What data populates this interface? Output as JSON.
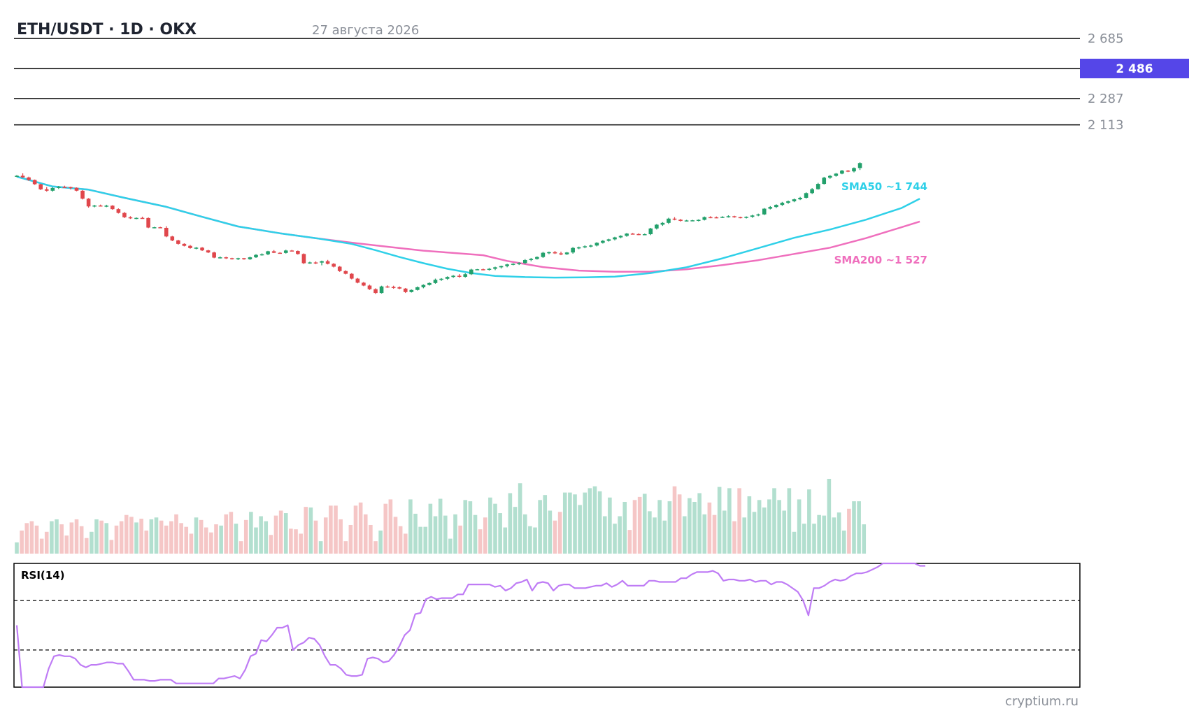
{
  "header": {
    "title": "ETH/USDT · 1D · OKX",
    "date": "27 августа 2026"
  },
  "watermark": "cryptium.ru",
  "colors": {
    "up": "#22a06b",
    "down": "#e0474c",
    "sma50": "#2fd0e8",
    "sma200": "#ef6fbd",
    "rsi": "#bf7cf5",
    "accent": "#5546e8"
  },
  "chart_data": {
    "type": "candlestick",
    "symbol": "ETH/USDT",
    "timeframe": "1D",
    "exchange": "OKX",
    "levels": [
      {
        "price": 2685,
        "label": "2 685"
      },
      {
        "price": 2287,
        "label": "2 287"
      },
      {
        "price": 2113,
        "label": "2 113"
      }
    ],
    "last_price": {
      "price": 2486,
      "label": "2 486"
    },
    "ylim": [
      700,
      2770
    ],
    "candles": [
      [
        1770,
        1780,
        1768,
        1776
      ],
      [
        1776,
        1792,
        1761,
        1765
      ],
      [
        1765,
        1770,
        1742,
        1748
      ],
      [
        1748,
        1751,
        1716,
        1720
      ],
      [
        1720,
        1723,
        1681,
        1686
      ],
      [
        1686,
        1701,
        1671,
        1677
      ],
      [
        1677,
        1700,
        1671,
        1695
      ],
      [
        1695,
        1708,
        1688,
        1702
      ],
      [
        1702,
        1710,
        1697,
        1701
      ],
      [
        1701,
        1704,
        1685,
        1696
      ],
      [
        1696,
        1699,
        1673,
        1677
      ],
      [
        1677,
        1681,
        1619,
        1624
      ],
      [
        1624,
        1628,
        1565,
        1573
      ],
      [
        1573,
        1583,
        1567,
        1579
      ],
      [
        1579,
        1585,
        1575,
        1576
      ],
      [
        1576,
        1584,
        1568,
        1578
      ],
      [
        1578,
        1581,
        1551,
        1555
      ],
      [
        1555,
        1560,
        1526,
        1530
      ],
      [
        1530,
        1536,
        1496,
        1501
      ],
      [
        1501,
        1508,
        1490,
        1495
      ],
      [
        1495,
        1500,
        1488,
        1497
      ],
      [
        1497,
        1505,
        1491,
        1496
      ],
      [
        1496,
        1500,
        1429,
        1433
      ],
      [
        1433,
        1438,
        1428,
        1435
      ],
      [
        1435,
        1438,
        1429,
        1431
      ],
      [
        1431,
        1442,
        1369,
        1374
      ],
      [
        1374,
        1378,
        1343,
        1348
      ],
      [
        1348,
        1352,
        1320,
        1325
      ],
      [
        1325,
        1329,
        1308,
        1312
      ],
      [
        1312,
        1318,
        1293,
        1297
      ],
      [
        1297,
        1304,
        1289,
        1300
      ],
      [
        1300,
        1304,
        1278,
        1282
      ],
      [
        1282,
        1286,
        1264,
        1268
      ],
      [
        1268,
        1273,
        1230,
        1234
      ],
      [
        1234,
        1242,
        1228,
        1236
      ],
      [
        1236,
        1240,
        1225,
        1230
      ],
      [
        1230,
        1233,
        1221,
        1226
      ],
      [
        1226,
        1233,
        1218,
        1230
      ],
      [
        1230,
        1232,
        1220,
        1223
      ],
      [
        1223,
        1240,
        1219,
        1236
      ],
      [
        1236,
        1257,
        1232,
        1252
      ],
      [
        1252,
        1262,
        1247,
        1256
      ],
      [
        1256,
        1279,
        1250,
        1276
      ],
      [
        1276,
        1284,
        1264,
        1266
      ],
      [
        1266,
        1270,
        1261,
        1265
      ],
      [
        1265,
        1286,
        1261,
        1281
      ],
      [
        1281,
        1285,
        1276,
        1278
      ],
      [
        1278,
        1281,
        1254,
        1258
      ],
      [
        1258,
        1262,
        1191,
        1197
      ],
      [
        1197,
        1207,
        1193,
        1202
      ],
      [
        1202,
        1209,
        1191,
        1201
      ],
      [
        1201,
        1214,
        1183,
        1210
      ],
      [
        1210,
        1219,
        1189,
        1193
      ],
      [
        1193,
        1198,
        1169,
        1174
      ],
      [
        1174,
        1178,
        1140,
        1145
      ],
      [
        1145,
        1150,
        1123,
        1127
      ],
      [
        1127,
        1131,
        1090,
        1095
      ],
      [
        1095,
        1099,
        1064,
        1068
      ],
      [
        1068,
        1073,
        1045,
        1049
      ],
      [
        1049,
        1055,
        1020,
        1025
      ],
      [
        1025,
        1031,
        993,
        1000
      ],
      [
        1000,
        1048,
        996,
        1043
      ],
      [
        1043,
        1050,
        1034,
        1040
      ],
      [
        1040,
        1048,
        1028,
        1038
      ],
      [
        1038,
        1043,
        1025,
        1029
      ],
      [
        1029,
        1033,
        1000,
        1006
      ],
      [
        1006,
        1023,
        1003,
        1020
      ],
      [
        1020,
        1043,
        1016,
        1038
      ],
      [
        1038,
        1057,
        1031,
        1053
      ],
      [
        1053,
        1070,
        1049,
        1066
      ],
      [
        1066,
        1095,
        1061,
        1087
      ],
      [
        1087,
        1098,
        1080,
        1094
      ],
      [
        1094,
        1110,
        1087,
        1106
      ],
      [
        1106,
        1118,
        1100,
        1114
      ],
      [
        1114,
        1125,
        1101,
        1107
      ],
      [
        1107,
        1130,
        1102,
        1124
      ],
      [
        1124,
        1160,
        1119,
        1155
      ],
      [
        1155,
        1159,
        1152,
        1157
      ],
      [
        1157,
        1161,
        1150,
        1155
      ],
      [
        1155,
        1165,
        1148,
        1160
      ],
      [
        1160,
        1174,
        1151,
        1170
      ],
      [
        1170,
        1181,
        1162,
        1178
      ],
      [
        1178,
        1193,
        1170,
        1189
      ],
      [
        1189,
        1197,
        1183,
        1193
      ],
      [
        1193,
        1203,
        1185,
        1198
      ],
      [
        1198,
        1224,
        1192,
        1218
      ],
      [
        1218,
        1232,
        1210,
        1225
      ],
      [
        1225,
        1242,
        1221,
        1238
      ],
      [
        1238,
        1272,
        1232,
        1266
      ],
      [
        1266,
        1274,
        1257,
        1270
      ],
      [
        1270,
        1278,
        1258,
        1262
      ],
      [
        1262,
        1273,
        1250,
        1256
      ],
      [
        1256,
        1271,
        1252,
        1268
      ],
      [
        1268,
        1304,
        1260,
        1298
      ],
      [
        1298,
        1307,
        1290,
        1302
      ],
      [
        1302,
        1315,
        1296,
        1309
      ],
      [
        1309,
        1320,
        1302,
        1314
      ],
      [
        1314,
        1336,
        1308,
        1332
      ],
      [
        1332,
        1350,
        1327,
        1345
      ],
      [
        1345,
        1359,
        1340,
        1355
      ],
      [
        1355,
        1372,
        1348,
        1368
      ],
      [
        1368,
        1382,
        1362,
        1378
      ],
      [
        1378,
        1397,
        1372,
        1393
      ],
      [
        1393,
        1397,
        1387,
        1390
      ],
      [
        1390,
        1395,
        1383,
        1387
      ],
      [
        1387,
        1393,
        1383,
        1389
      ],
      [
        1389,
        1431,
        1383,
        1427
      ],
      [
        1427,
        1456,
        1420,
        1452
      ],
      [
        1452,
        1469,
        1444,
        1464
      ],
      [
        1464,
        1498,
        1457,
        1492
      ],
      [
        1492,
        1502,
        1481,
        1485
      ],
      [
        1485,
        1490,
        1473,
        1477
      ],
      [
        1477,
        1484,
        1474,
        1480
      ],
      [
        1480,
        1484,
        1476,
        1481
      ],
      [
        1481,
        1487,
        1474,
        1484
      ],
      [
        1484,
        1506,
        1480,
        1502
      ],
      [
        1502,
        1508,
        1495,
        1501
      ],
      [
        1501,
        1506,
        1495,
        1500
      ],
      [
        1500,
        1508,
        1496,
        1504
      ],
      [
        1504,
        1514,
        1499,
        1508
      ],
      [
        1508,
        1511,
        1498,
        1502
      ],
      [
        1502,
        1505,
        1494,
        1497
      ],
      [
        1497,
        1507,
        1493,
        1504
      ],
      [
        1504,
        1518,
        1498,
        1513
      ],
      [
        1513,
        1525,
        1508,
        1520
      ],
      [
        1520,
        1562,
        1516,
        1558
      ],
      [
        1558,
        1575,
        1553,
        1569
      ],
      [
        1569,
        1587,
        1562,
        1583
      ],
      [
        1583,
        1603,
        1576,
        1597
      ],
      [
        1597,
        1612,
        1590,
        1607
      ],
      [
        1607,
        1625,
        1601,
        1620
      ],
      [
        1620,
        1636,
        1615,
        1630
      ],
      [
        1630,
        1666,
        1625,
        1661
      ],
      [
        1661,
        1694,
        1655,
        1687
      ],
      [
        1687,
        1729,
        1684,
        1722
      ],
      [
        1722,
        1769,
        1718,
        1763
      ],
      [
        1763,
        1781,
        1756,
        1775
      ],
      [
        1775,
        1794,
        1770,
        1790
      ],
      [
        1790,
        1814,
        1786,
        1810
      ],
      [
        1810,
        1814,
        1800,
        1805
      ],
      [
        1805,
        1831,
        1798,
        1827
      ],
      [
        1827,
        1865,
        1814,
        1860
      ]
    ],
    "volume": [
      0.18,
      0.37,
      0.49,
      0.52,
      0.45,
      0.24,
      0.35,
      0.52,
      0.55,
      0.47,
      0.29,
      0.5,
      0.55,
      0.44,
      0.25,
      0.35,
      0.55,
      0.53,
      0.49,
      0.22,
      0.45,
      0.52,
      0.62,
      0.59,
      0.5,
      0.56,
      0.37,
      0.55,
      0.58,
      0.53,
      0.45,
      0.52,
      0.63,
      0.49,
      0.43,
      0.32,
      0.58,
      0.54,
      0.42,
      0.34,
      0.47,
      0.45,
      0.63,
      0.67,
      0.48,
      0.2,
      0.54,
      0.67,
      0.42,
      0.6,
      0.52,
      0.3,
      0.61,
      0.69,
      0.65,
      0.4,
      0.39,
      0.32,
      0.75,
      0.74,
      0.53,
      0.2,
      0.58,
      0.77,
      0.77,
      0.55,
      0.2,
      0.46,
      0.77,
      0.82,
      0.63,
      0.46,
      0.2,
      0.37,
      0.8,
      0.87,
      0.59,
      0.44,
      0.32,
      0.87,
      0.64,
      0.43,
      0.43,
      0.8,
      0.6,
      0.88,
      0.61,
      0.24,
      0.63,
      0.45,
      0.86,
      0.84,
      0.62,
      0.39,
      0.58,
      0.9,
      0.8,
      0.65,
      0.42,
      0.97,
      0.75,
      1.13,
      0.63,
      0.44,
      0.42,
      0.86,
      0.94,
      0.69,
      0.53,
      0.67,
      0.98,
      0.98,
      0.95,
      0.78,
      0.98,
      1.05,
      1.08,
      1.0,
      0.6,
      0.9,
      0.48,
      0.6,
      0.83,
      0.38,
      0.86,
      0.91,
      0.96,
      0.68,
      0.58,
      0.86,
      0.53,
      0.84,
      1.08,
      0.95,
      0.6,
      0.89,
      0.83,
      0.97,
      0.63,
      0.82,
      0.62,
      1.07,
      0.69,
      1.05,
      0.52,
      1.05,
      0.58,
      0.92,
      0.67,
      0.86,
      0.74,
      0.87,
      1.05,
      0.86,
      0.69,
      1.05,
      0.35,
      0.87,
      0.48,
      1.03,
      0.48,
      0.62,
      0.61,
      1.2,
      0.58,
      0.66,
      0.37,
      0.72,
      0.84,
      0.84,
      0.47
    ],
    "sma50": [
      [
        0,
        1770
      ],
      [
        6,
        1705
      ],
      [
        12,
        1684
      ],
      [
        18,
        1630
      ],
      [
        25,
        1570
      ],
      [
        31,
        1504
      ],
      [
        37,
        1440
      ],
      [
        44,
        1395
      ],
      [
        50,
        1363
      ],
      [
        56,
        1325
      ],
      [
        60,
        1283
      ],
      [
        64,
        1238
      ],
      [
        68,
        1197
      ],
      [
        72,
        1160
      ],
      [
        76,
        1132
      ],
      [
        80,
        1113
      ],
      [
        85,
        1105
      ],
      [
        90,
        1102
      ],
      [
        95,
        1103
      ],
      [
        100,
        1108
      ],
      [
        106,
        1132
      ],
      [
        112,
        1170
      ],
      [
        118,
        1229
      ],
      [
        124,
        1297
      ],
      [
        130,
        1365
      ],
      [
        136,
        1420
      ],
      [
        142,
        1485
      ],
      [
        148,
        1563
      ],
      [
        151,
        1624
      ]
    ],
    "sma200": [
      [
        0,
        1770
      ],
      [
        6,
        1705
      ],
      [
        12,
        1684
      ],
      [
        18,
        1630
      ],
      [
        25,
        1570
      ],
      [
        31,
        1504
      ],
      [
        37,
        1440
      ],
      [
        44,
        1395
      ],
      [
        50,
        1363
      ],
      [
        56,
        1333
      ],
      [
        62,
        1306
      ],
      [
        68,
        1280
      ],
      [
        74,
        1262
      ],
      [
        78,
        1250
      ],
      [
        82,
        1212
      ],
      [
        88,
        1171
      ],
      [
        94,
        1148
      ],
      [
        100,
        1140
      ],
      [
        106,
        1141
      ],
      [
        112,
        1157
      ],
      [
        118,
        1184
      ],
      [
        124,
        1217
      ],
      [
        130,
        1258
      ],
      [
        136,
        1300
      ],
      [
        142,
        1363
      ],
      [
        148,
        1436
      ],
      [
        151,
        1473
      ]
    ],
    "sma50_label": "SMA50 ~1 744",
    "sma200_label": "SMA200 ~1 527",
    "rsi": {
      "label": "RSI(14)",
      "ylim": [
        0,
        100
      ],
      "levels": [
        70,
        30
      ],
      "values": [
        50,
        0,
        0,
        0,
        0,
        0,
        15,
        25,
        26,
        25,
        25,
        23,
        18,
        16,
        18,
        18,
        19,
        20,
        20,
        19,
        19,
        13,
        6,
        6,
        6,
        5,
        5,
        6,
        6,
        6,
        3,
        3,
        3,
        3,
        3,
        3,
        3,
        3,
        7,
        7,
        8,
        9,
        7,
        14,
        25,
        27,
        38,
        37,
        42,
        48,
        48,
        50,
        30,
        34,
        36,
        40,
        39,
        34,
        25,
        18,
        18,
        15,
        10,
        9,
        9,
        10,
        23,
        24,
        23,
        20,
        21,
        26,
        33,
        42,
        46,
        59,
        60,
        71,
        73,
        71,
        72,
        72,
        72,
        75,
        75,
        83,
        83,
        83,
        83,
        83,
        81,
        82,
        78,
        80,
        84,
        85,
        87,
        78,
        84,
        85,
        84,
        78,
        82,
        83,
        83,
        80,
        80,
        80,
        81,
        82,
        82,
        84,
        81,
        83,
        86,
        82,
        82,
        82,
        82,
        86,
        86,
        85,
        85,
        85,
        85,
        88,
        88,
        91,
        93,
        93,
        93,
        94,
        92,
        86,
        87,
        87,
        86,
        86,
        87,
        85,
        86,
        86,
        83,
        85,
        85,
        83,
        80,
        77,
        70,
        58,
        80,
        80,
        82,
        85,
        87,
        86,
        87,
        90,
        92,
        92,
        93,
        95,
        97,
        100,
        100,
        100,
        100,
        100,
        100,
        100,
        98,
        98
      ]
    }
  }
}
